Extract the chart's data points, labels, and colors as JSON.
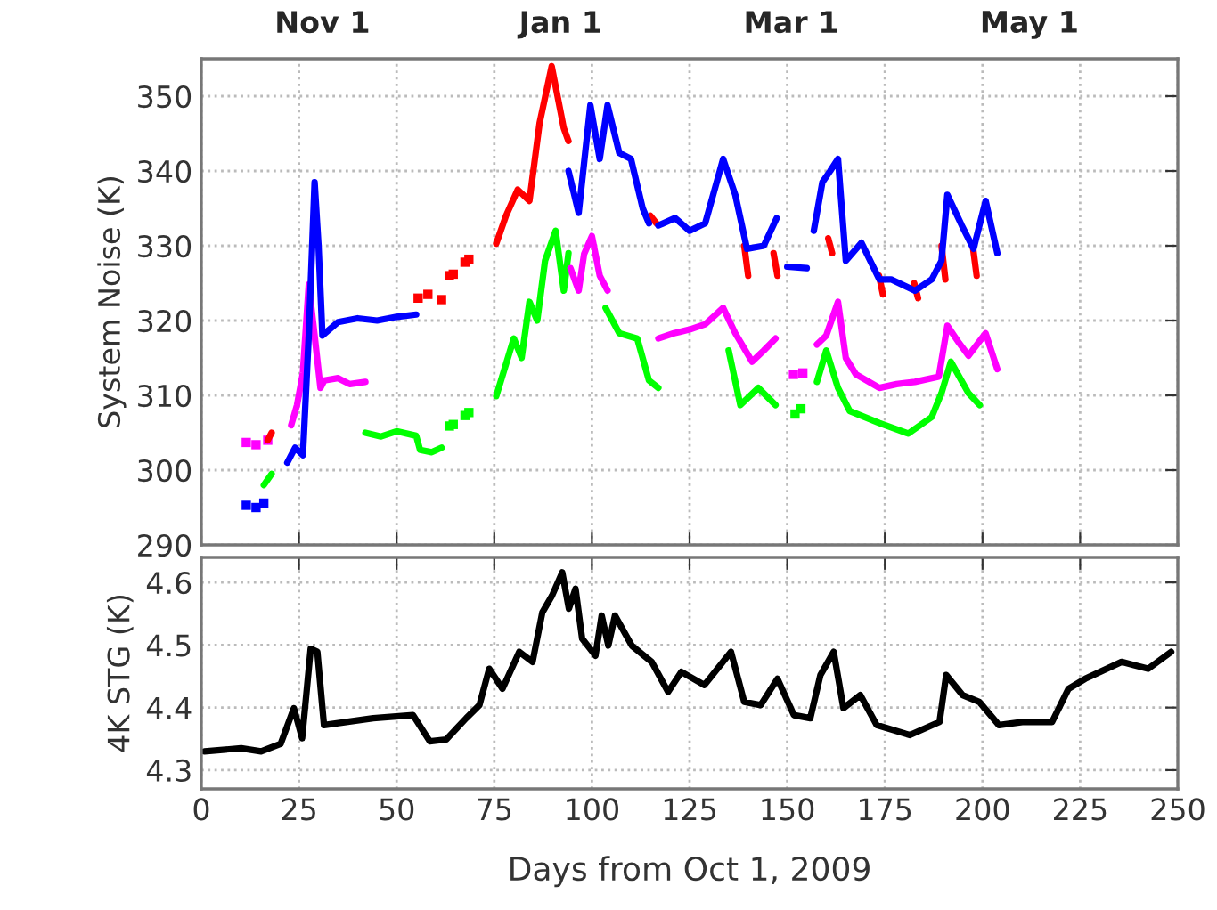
{
  "chart_data": [
    {
      "type": "line",
      "ylabel": "System Noise (K)",
      "xlim": [
        0,
        250
      ],
      "xticks": [
        0,
        25,
        50,
        75,
        100,
        125,
        150,
        175,
        200,
        225,
        250
      ],
      "ylim": [
        290,
        355
      ],
      "yticks": [
        290,
        300,
        310,
        320,
        330,
        340,
        350
      ],
      "x2lim": [
        "2009-10-01",
        "2010-06-08"
      ],
      "x2ticks": [
        {
          "value": "2009-11-01",
          "label": "Nov 1"
        },
        {
          "value": "2010-01-01",
          "label": "Jan 1"
        },
        {
          "value": "2010-03-01",
          "label": "Mar 1"
        },
        {
          "value": "2010-05-01",
          "label": "May 1"
        }
      ],
      "tick_labels": "y",
      "grid": true,
      "line_style": "solid",
      "series": [
        {
          "color": "#00ff00",
          "x": [
            16,
            18,
            30,
            42,
            46,
            50,
            55,
            56,
            59,
            61.5,
            72,
            75.5,
            80,
            82,
            84,
            86,
            88,
            90.7,
            92.8,
            94,
            100,
            103.5,
            107,
            111.6,
            114.6,
            117,
            125,
            135,
            138,
            142.6,
            147,
            155,
            157.6,
            160,
            163,
            166,
            173.6,
            181,
            187,
            189.5,
            191.9,
            196.4,
            199.3
          ],
          "values": [
            298,
            299.5,
            null,
            305,
            304.5,
            305.2,
            304.6,
            302.7,
            302.4,
            303,
            null,
            309.9,
            317.6,
            315,
            322.5,
            320,
            328,
            332,
            324,
            329,
            null,
            321.7,
            318.3,
            317.6,
            312,
            311,
            null,
            316,
            308.7,
            311,
            308.7,
            null,
            311.8,
            316,
            311,
            307.9,
            306.3,
            304.9,
            307.1,
            310.3,
            314.5,
            310.3,
            308.7
          ]
        },
        {
          "type": "scatter",
          "marker": "square",
          "color": "#00ff00",
          "x": [
            63.5,
            64.5,
            67.5,
            68.5,
            152,
            153.5
          ],
          "values": [
            305.9,
            306.1,
            307.3,
            307.7,
            307.5,
            308.2
          ]
        },
        {
          "color": "#ff00ff",
          "x": [
            23,
            24.5,
            26,
            27.5,
            29,
            30.5,
            31.5,
            35,
            38,
            42,
            70,
            94.5,
            96.6,
            98,
            100,
            102,
            104,
            110,
            117,
            121,
            125,
            129,
            133.6,
            136.7,
            141,
            144,
            147,
            156,
            157.6,
            160,
            163,
            165,
            167.6,
            173.6,
            178,
            182.7,
            188.8,
            191,
            194,
            196.4,
            200.8,
            203.8
          ],
          "values": [
            306,
            308.7,
            313,
            324.8,
            318,
            311,
            312,
            312.3,
            311.5,
            311.8,
            null,
            327,
            324,
            328.9,
            331.3,
            326,
            324,
            null,
            317.6,
            318.3,
            318.8,
            319.5,
            321.7,
            318.3,
            314.5,
            316,
            317.6,
            null,
            316.8,
            318,
            322.5,
            315,
            312.8,
            311,
            311.5,
            311.8,
            312.5,
            319.3,
            317,
            315.3,
            318.3,
            313.5
          ]
        },
        {
          "type": "scatter",
          "marker": "square",
          "color": "#ff00ff",
          "x": [
            11.5,
            14,
            17,
            151.6,
            154
          ],
          "values": [
            303.7,
            303.4,
            304,
            312.8,
            313
          ]
        },
        {
          "color": "#ff0000",
          "x": [
            17,
            18,
            62,
            75.5,
            78,
            81,
            84,
            86.6,
            89.7,
            92.8,
            94,
            105,
            115,
            116.5,
            130,
            139,
            140,
            143,
            146.5,
            147.5,
            155,
            160.5,
            161.5,
            170,
            173.5,
            174.5,
            178,
            182.5,
            183.5,
            186,
            189.5,
            190.5,
            194,
            197.5,
            198.5
          ],
          "values": [
            304,
            305,
            null,
            330.3,
            334,
            337.5,
            336,
            346.4,
            354,
            345.7,
            344,
            null,
            334,
            333,
            null,
            330,
            326,
            null,
            329,
            326,
            null,
            331,
            329,
            null,
            326,
            323.5,
            null,
            325,
            323,
            null,
            330,
            325.5,
            null,
            330,
            326
          ]
        },
        {
          "type": "scatter",
          "marker": "square",
          "color": "#ff0000",
          "x": [
            55.5,
            58,
            61.5,
            63.5,
            64.5,
            67.5,
            68.5
          ],
          "values": [
            323,
            323.5,
            322.8,
            326,
            326.2,
            327.8,
            328.2
          ]
        },
        {
          "color": "#0000ff",
          "x": [
            22,
            24,
            26,
            27.5,
            29,
            30,
            31,
            35,
            40,
            45,
            50,
            55,
            75,
            94,
            96.6,
            99.6,
            102,
            104,
            107,
            110,
            113,
            114.6,
            116,
            117,
            121.3,
            125,
            129,
            133.6,
            136.7,
            139.7,
            144,
            147.3,
            148.5,
            150,
            155,
            156,
            156.8,
            159,
            161,
            163,
            165,
            169,
            173.6,
            176.6,
            182.7,
            187,
            189.5,
            191,
            194.7,
            197.7,
            200.8,
            203.8
          ],
          "values": [
            301,
            303,
            302,
            318,
            338.5,
            330,
            318,
            319.8,
            320.3,
            320,
            320.5,
            320.8,
            null,
            340,
            334.4,
            348.8,
            341.6,
            348.8,
            342.4,
            341.6,
            335,
            333,
            null,
            332.7,
            333.7,
            332,
            333,
            341.6,
            336.8,
            329.6,
            330,
            333.7,
            null,
            327.2,
            327,
            null,
            332,
            338.5,
            340,
            341.6,
            328,
            330.4,
            325.5,
            325.5,
            324,
            325.5,
            328,
            336.8,
            332.7,
            329.6,
            336,
            329
          ]
        },
        {
          "type": "scatter",
          "marker": "square",
          "color": "#0000ff",
          "x": [
            11.5,
            14,
            16
          ],
          "values": [
            295.3,
            295,
            295.6
          ]
        }
      ]
    },
    {
      "type": "line",
      "xlabel": "Days from Oct 1, 2009",
      "ylabel": "4K STG (K)",
      "xlim": [
        0,
        250
      ],
      "xticks": [
        0,
        25,
        50,
        75,
        100,
        125,
        150,
        175,
        200,
        225,
        250
      ],
      "ylim": [
        4.27,
        4.64
      ],
      "yticks": [
        4.3,
        4.4,
        4.5,
        4.6
      ],
      "grid": true,
      "line_style": "solid",
      "series": [
        {
          "color": "#000000",
          "x": [
            0.8,
            10.2,
            15.3,
            20.3,
            23.7,
            25.8,
            28,
            29.7,
            31.4,
            44,
            54.2,
            58.5,
            62.7,
            67.8,
            71.2,
            73.7,
            77.1,
            81.4,
            84.8,
            87.3,
            89.8,
            92.4,
            94.1,
            95.8,
            97.5,
            100.9,
            102.5,
            104.2,
            105.9,
            110.2,
            115.3,
            119.5,
            122.9,
            128.8,
            135.6,
            139,
            143.2,
            147.5,
            151.7,
            155.9,
            158.5,
            161.9,
            164.4,
            168.7,
            172.9,
            181.4,
            189,
            190.7,
            194.9,
            199.2,
            204.2,
            210.2,
            217.8,
            222,
            226.3,
            235.6,
            242.4,
            248.3
          ],
          "values": [
            4.33,
            4.335,
            4.33,
            4.342,
            4.399,
            4.351,
            4.494,
            4.489,
            4.372,
            4.383,
            4.388,
            4.346,
            4.349,
            4.383,
            4.404,
            4.462,
            4.43,
            4.489,
            4.473,
            4.552,
            4.579,
            4.616,
            4.558,
            4.59,
            4.51,
            4.483,
            4.547,
            4.499,
            4.547,
            4.499,
            4.473,
            4.425,
            4.457,
            4.436,
            4.489,
            4.409,
            4.404,
            4.446,
            4.388,
            4.383,
            4.452,
            4.489,
            4.399,
            4.42,
            4.372,
            4.356,
            4.377,
            4.452,
            4.42,
            4.409,
            4.372,
            4.377,
            4.377,
            4.43,
            4.446,
            4.473,
            4.462,
            4.489
          ]
        }
      ]
    }
  ]
}
